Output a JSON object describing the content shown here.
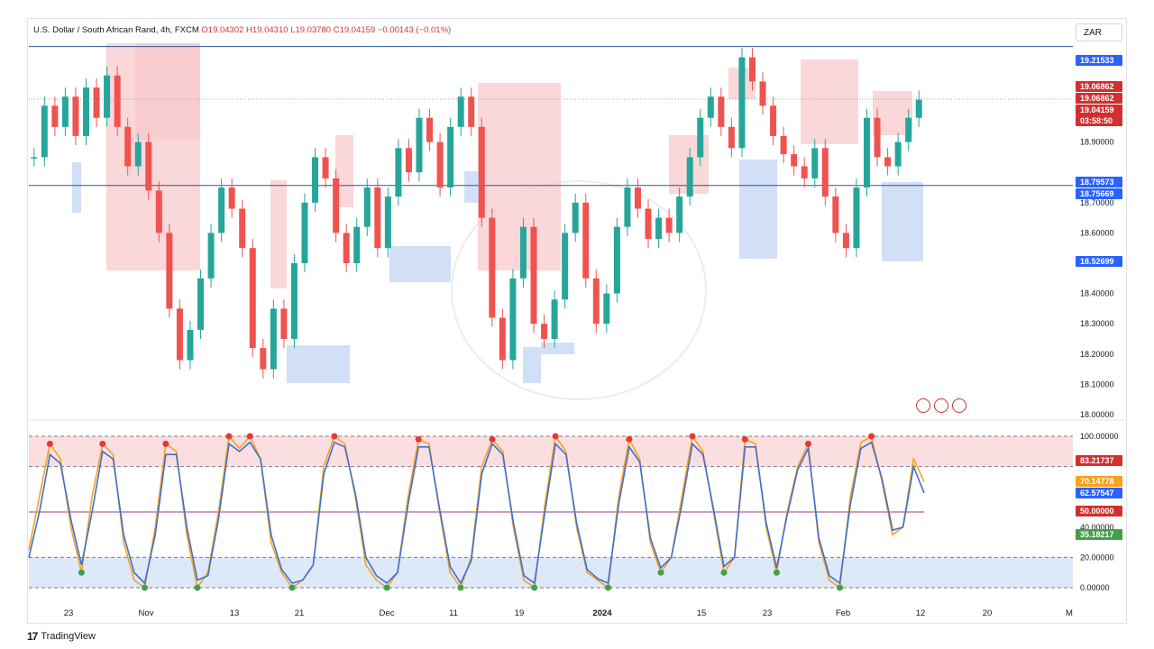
{
  "header": {
    "symbol": "U.S. Dollar / South African Rand, 4h, FXCM",
    "ohlc": "O19.04302  H19.04310  L19.03780  C19.04159  −0.00143 (−0.01%)"
  },
  "currency_button": "ZAR",
  "footer": {
    "brand_mark": "17",
    "brand_name": "TradingView"
  },
  "icons": [
    "indicator-flag-icon",
    "indicator-flag-icon",
    "indicator-flag-icon"
  ],
  "colors": {
    "bull": "#26a69a",
    "bear": "#ef5350",
    "supply_zone": "#f8c9cc",
    "demand_zone": "#c7d8f5",
    "stoch_k": "#f7a21b",
    "stoch_d": "#3f6fd1",
    "blue_badge": "#2962ff",
    "red_badge": "#d32f2f"
  },
  "chart_data": [
    {
      "type": "line",
      "name": "price",
      "y_axis_ticks": [
        "18.90000",
        "18.70000",
        "18.60000",
        "18.50000",
        "18.40000",
        "18.30000",
        "18.20000",
        "18.10000",
        "18.00000"
      ],
      "ylim": [
        18.0,
        19.25
      ],
      "horizontal_levels": [
        19.21533,
        18.75669
      ],
      "price_badges": [
        {
          "value": "19.21533",
          "color": "#2962ff"
        },
        {
          "value": "19.06862",
          "color": "#d32f2f"
        },
        {
          "value": "19.06862",
          "color": "#d32f2f"
        },
        {
          "value": "19.04159",
          "color": "#d32f2f"
        },
        {
          "value": "03:58:50",
          "color": "#d32f2f"
        },
        {
          "value": "18.79573",
          "color": "#2962ff"
        },
        {
          "value": "18.75669",
          "color": "#2962ff"
        },
        {
          "value": "18.52699",
          "color": "#2962ff"
        }
      ],
      "x_labels": [
        "23",
        "Nov",
        "13",
        "21",
        "Dec",
        "11",
        "19",
        "2024",
        "15",
        "23",
        "Feb",
        "12",
        "20",
        "M"
      ],
      "series": [
        {
          "values": [
            18.85,
            19.02,
            18.95,
            19.05,
            18.92,
            19.08,
            18.98,
            19.12,
            18.95,
            18.82,
            18.9,
            18.74,
            18.6,
            18.35,
            18.18,
            18.28,
            18.45,
            18.6,
            18.75,
            18.68,
            18.55,
            18.22,
            18.15,
            18.35,
            18.25,
            18.5,
            18.7,
            18.85,
            18.78,
            18.6,
            18.5,
            18.62,
            18.75,
            18.55,
            18.72,
            18.88,
            18.8,
            18.98,
            18.9,
            18.75,
            18.95,
            19.05,
            18.95,
            18.65,
            18.32,
            18.18,
            18.45,
            18.62,
            18.3,
            18.25,
            18.38,
            18.6,
            18.7,
            18.45,
            18.3,
            18.4,
            18.62,
            18.75,
            18.68,
            18.58,
            18.65,
            18.6,
            18.72,
            18.85,
            18.98,
            19.05,
            18.95,
            18.88,
            19.18,
            19.1,
            19.02,
            18.92,
            18.86,
            18.82,
            18.78,
            18.88,
            18.72,
            18.6,
            18.55,
            18.75,
            18.98,
            18.85,
            18.82,
            18.9,
            18.98,
            19.04
          ]
        }
      ]
    },
    {
      "type": "line",
      "name": "stochastic",
      "y_axis_ticks": [
        "100.00000",
        "40.00000",
        "20.00000",
        "0.00000"
      ],
      "ylim": [
        0,
        100
      ],
      "levels": [
        100,
        80,
        50,
        20,
        0
      ],
      "value_badges": [
        {
          "value": "83.21737",
          "color": "#d32f2f"
        },
        {
          "value": "70.14778",
          "color": "#f7a21b"
        },
        {
          "value": "62.57547",
          "color": "#2962ff"
        },
        {
          "value": "50.00000",
          "color": "#d32f2f"
        },
        {
          "value": "35.18217",
          "color": "#43a047"
        }
      ],
      "series": [
        {
          "values": [
            25,
            60,
            95,
            85,
            40,
            10,
            60,
            95,
            88,
            30,
            5,
            0,
            40,
            95,
            90,
            35,
            0,
            10,
            50,
            100,
            92,
            100,
            85,
            30,
            10,
            0,
            5,
            15,
            80,
            100,
            95,
            60,
            15,
            5,
            0,
            10,
            60,
            98,
            95,
            50,
            10,
            0,
            20,
            80,
            98,
            90,
            40,
            5,
            0,
            55,
            100,
            90,
            40,
            10,
            5,
            0,
            60,
            98,
            85,
            30,
            10,
            20,
            60,
            100,
            90,
            50,
            10,
            20,
            98,
            95,
            40,
            10,
            50,
            80,
            95,
            30,
            5,
            0,
            60,
            96,
            100,
            70,
            35,
            40,
            85,
            70
          ]
        },
        {
          "values": [
            20,
            50,
            88,
            82,
            45,
            15,
            50,
            90,
            85,
            35,
            10,
            3,
            35,
            88,
            88,
            40,
            5,
            8,
            45,
            95,
            90,
            96,
            85,
            35,
            12,
            3,
            5,
            15,
            75,
            96,
            93,
            62,
            20,
            8,
            3,
            10,
            55,
            93,
            93,
            52,
            14,
            3,
            18,
            75,
            95,
            88,
            43,
            8,
            3,
            50,
            95,
            88,
            43,
            12,
            6,
            3,
            55,
            93,
            83,
            33,
            13,
            20,
            55,
            95,
            88,
            52,
            14,
            20,
            93,
            93,
            43,
            13,
            48,
            78,
            92,
            33,
            8,
            3,
            55,
            92,
            96,
            72,
            38,
            40,
            80,
            62.6
          ]
        }
      ]
    }
  ]
}
